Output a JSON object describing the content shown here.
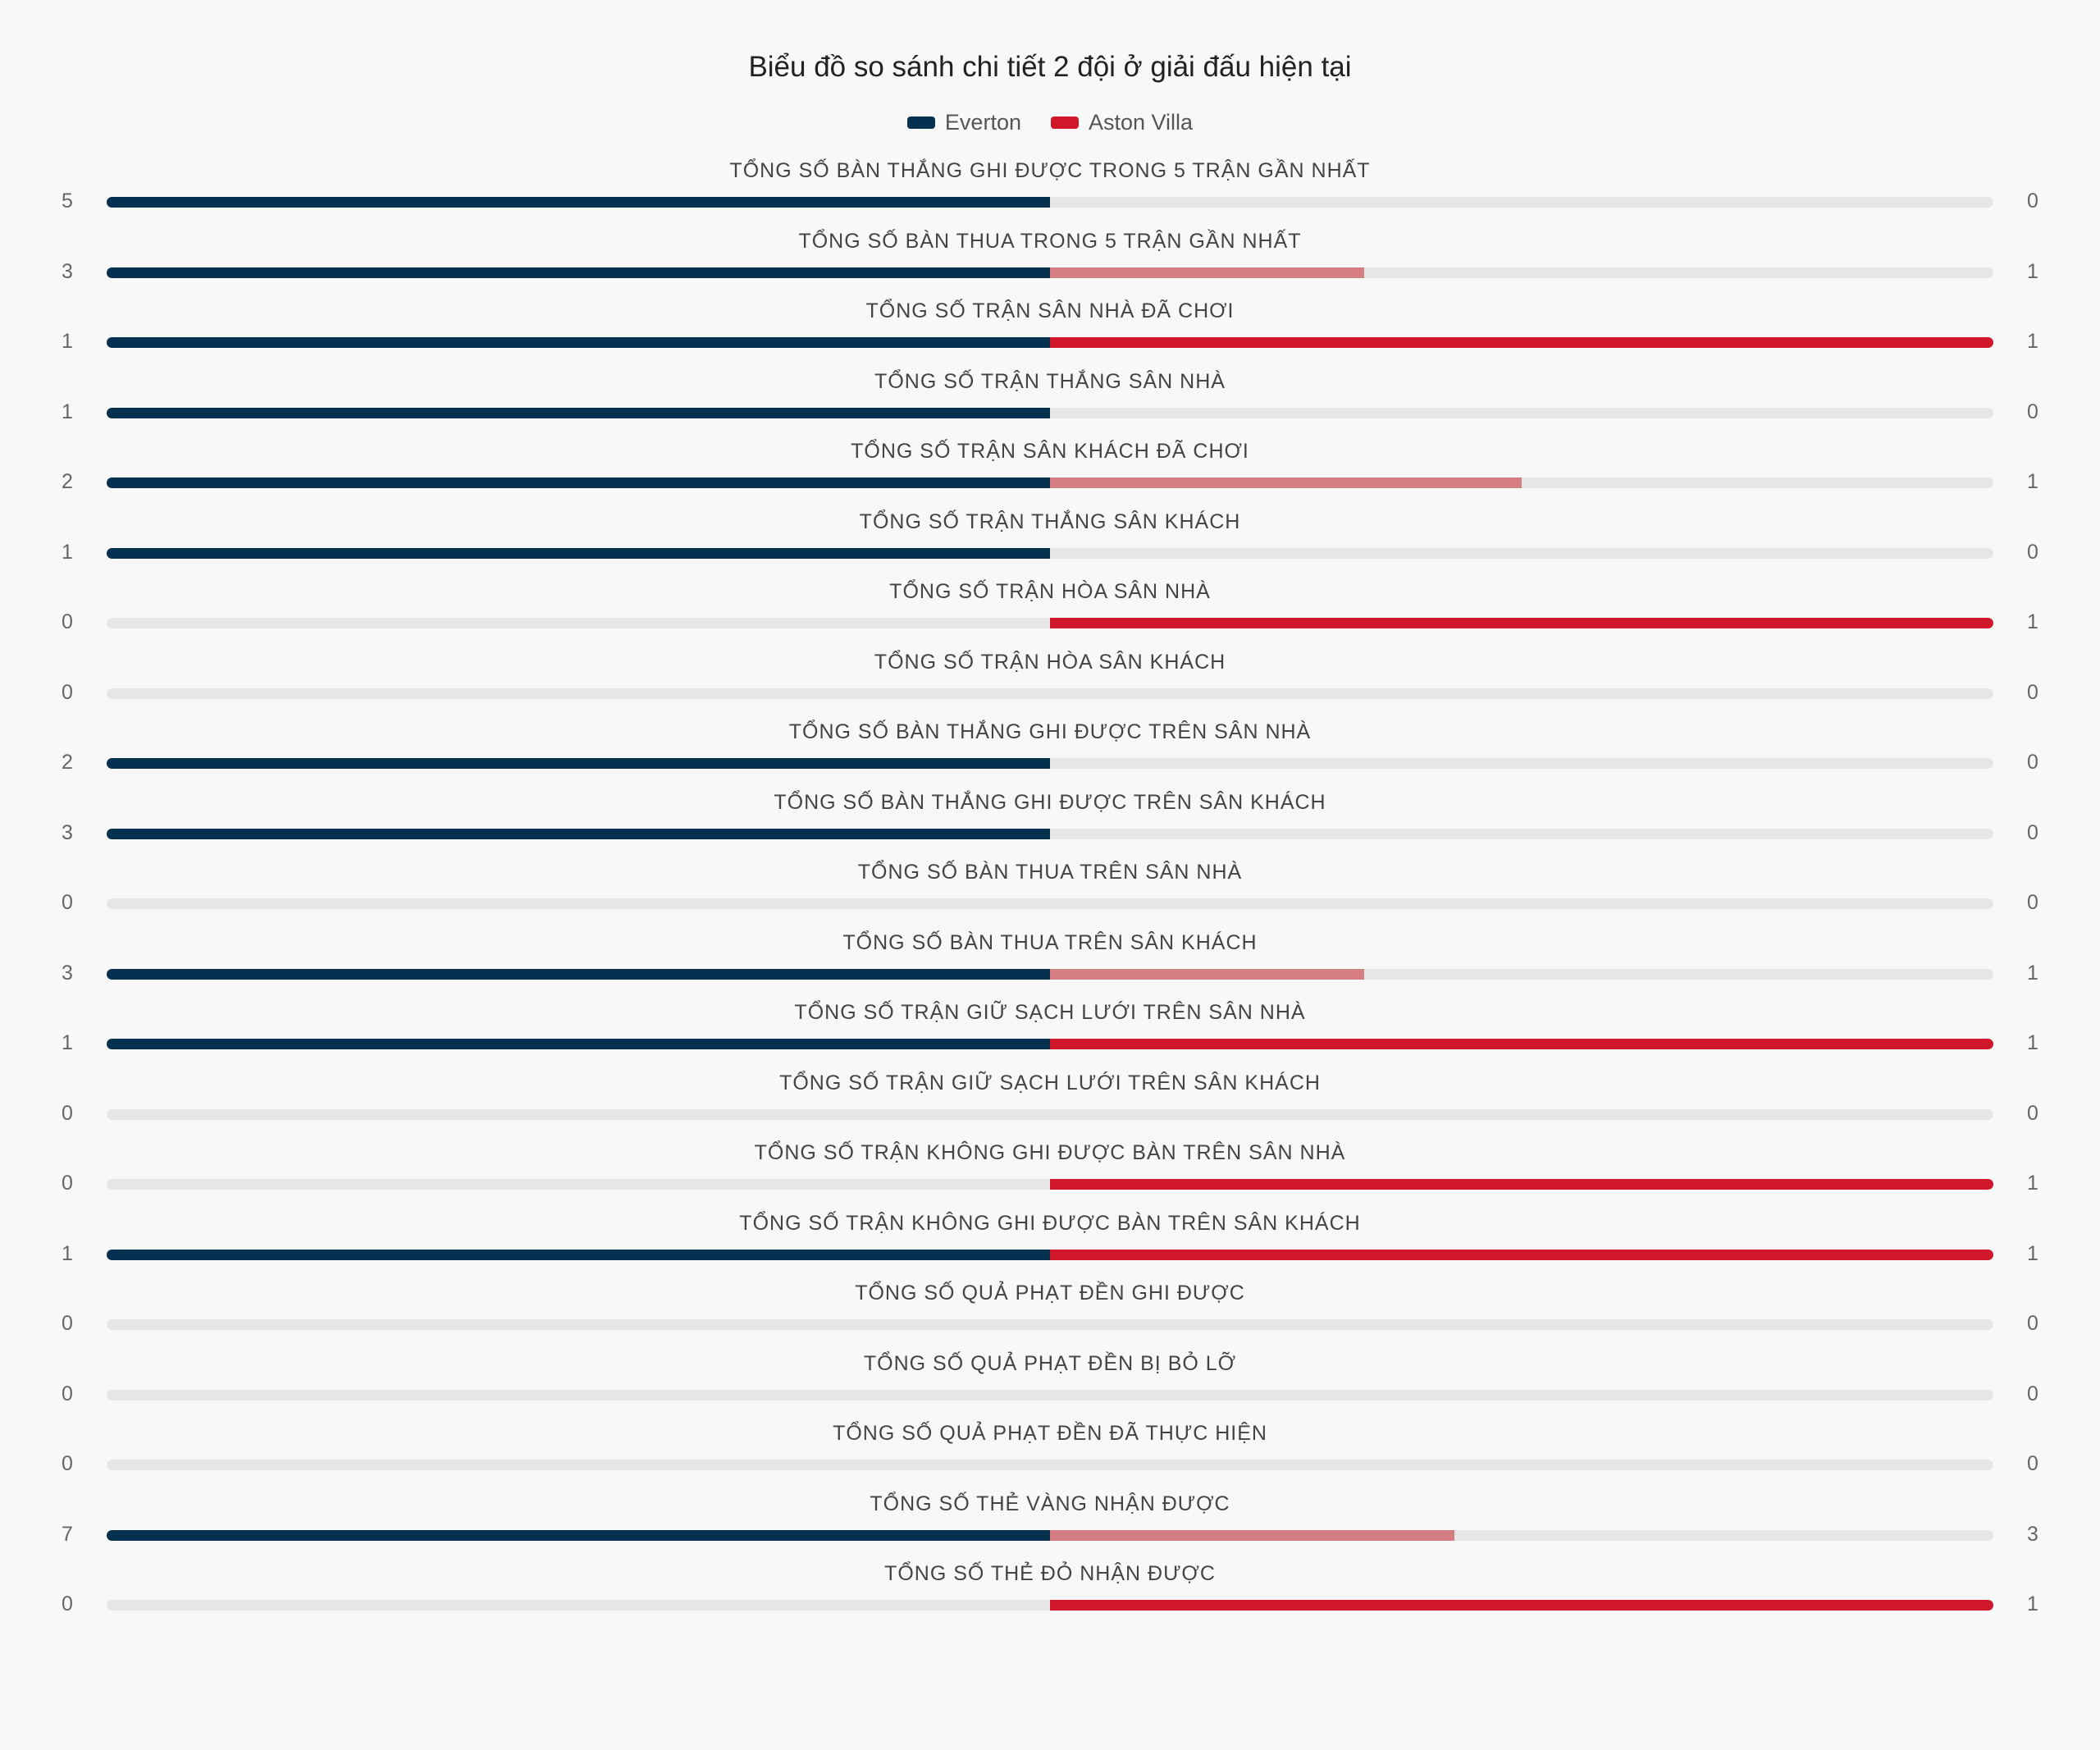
{
  "chart_data": {
    "type": "bar",
    "title": "Biểu đồ so sánh chi tiết 2 đội ở giải đấu hiện tại",
    "series": [
      {
        "name": "Everton",
        "color": "#06304f"
      },
      {
        "name": "Aston Villa",
        "color": "#d0182a",
        "light_color": "#d47d82"
      }
    ],
    "track_color": "#e6e6e6",
    "legend_position": "top",
    "rows": [
      {
        "label": "TỔNG SỐ BÀN THẮNG GHI ĐƯỢC TRONG 5 TRẬN GẦN NHẤT",
        "left": 5,
        "right": 0
      },
      {
        "label": "TỔNG SỐ BÀN THUA TRONG 5 TRẬN GẦN NHẤT",
        "left": 3,
        "right": 1
      },
      {
        "label": "TỔNG SỐ TRẬN SÂN NHÀ ĐÃ CHƠI",
        "left": 1,
        "right": 1
      },
      {
        "label": "TỔNG SỐ TRẬN THẮNG SÂN NHÀ",
        "left": 1,
        "right": 0
      },
      {
        "label": "TỔNG SỐ TRẬN SÂN KHÁCH ĐÃ CHƠI",
        "left": 2,
        "right": 1
      },
      {
        "label": "TỔNG SỐ TRẬN THẮNG SÂN KHÁCH",
        "left": 1,
        "right": 0
      },
      {
        "label": "TỔNG SỐ TRẬN HÒA SÂN NHÀ",
        "left": 0,
        "right": 1
      },
      {
        "label": "TỔNG SỐ TRẬN HÒA SÂN KHÁCH",
        "left": 0,
        "right": 0
      },
      {
        "label": "TỔNG SỐ BÀN THẮNG GHI ĐƯỢC TRÊN SÂN NHÀ",
        "left": 2,
        "right": 0
      },
      {
        "label": "TỔNG SỐ BÀN THẮNG GHI ĐƯỢC TRÊN SÂN KHÁCH",
        "left": 3,
        "right": 0
      },
      {
        "label": "TỔNG SỐ BÀN THUA TRÊN SÂN NHÀ",
        "left": 0,
        "right": 0
      },
      {
        "label": "TỔNG SỐ BÀN THUA TRÊN SÂN KHÁCH",
        "left": 3,
        "right": 1
      },
      {
        "label": "TỔNG SỐ TRẬN GIỮ SẠCH LƯỚI TRÊN SÂN NHÀ",
        "left": 1,
        "right": 1
      },
      {
        "label": "TỔNG SỐ TRẬN GIỮ SẠCH LƯỚI TRÊN SÂN KHÁCH",
        "left": 0,
        "right": 0
      },
      {
        "label": "TỔNG SỐ TRẬN KHÔNG GHI ĐƯỢC BÀN TRÊN SÂN NHÀ",
        "left": 0,
        "right": 1
      },
      {
        "label": "TỔNG SỐ TRẬN KHÔNG GHI ĐƯỢC BÀN TRÊN SÂN KHÁCH",
        "left": 1,
        "right": 1
      },
      {
        "label": "TỔNG SỐ QUẢ PHẠT ĐỀN GHI ĐƯỢC",
        "left": 0,
        "right": 0
      },
      {
        "label": "TỔNG SỐ QUẢ PHẠT ĐỀN BỊ BỎ LỠ",
        "left": 0,
        "right": 0
      },
      {
        "label": "TỔNG SỐ QUẢ PHẠT ĐỀN ĐÃ THỰC HIỆN",
        "left": 0,
        "right": 0
      },
      {
        "label": "TỔNG SỐ THẺ VÀNG NHẬN ĐƯỢC",
        "left": 7,
        "right": 3
      },
      {
        "label": "TỔNG SỐ THẺ ĐỎ NHẬN ĐƯỢC",
        "left": 0,
        "right": 1
      }
    ]
  }
}
